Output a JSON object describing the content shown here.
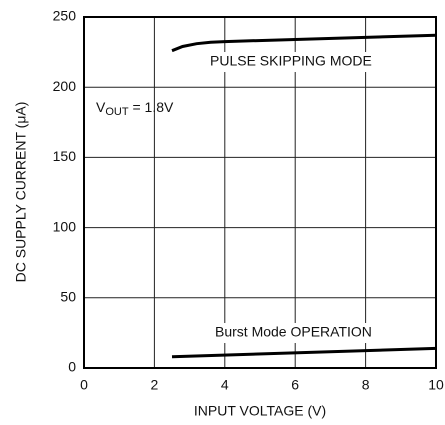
{
  "chart_data": {
    "type": "line",
    "xlabel": "INPUT VOLTAGE (V)",
    "ylabel": "DC SUPPLY CURRENT (μA)",
    "annotation": [
      "V",
      "OUT",
      " = 1.8V"
    ],
    "xlim": [
      0,
      10
    ],
    "xticks": [
      0,
      2,
      4,
      6,
      8,
      10
    ],
    "ylim": [
      0,
      250
    ],
    "yticks": [
      0,
      50,
      100,
      150,
      200,
      250
    ],
    "grid": true,
    "series": [
      {
        "name": "PULSE SKIPPING MODE",
        "color": "#000000",
        "x": [
          2.5,
          2.8,
          3.2,
          3.6,
          4,
          6,
          8,
          10
        ],
        "values": [
          226,
          229,
          231,
          232,
          232.5,
          234,
          235.5,
          237
        ]
      },
      {
        "name": "Burst Mode OPERATION",
        "color": "#000000",
        "x": [
          2.5,
          10
        ],
        "values": [
          8,
          14
        ]
      }
    ]
  }
}
